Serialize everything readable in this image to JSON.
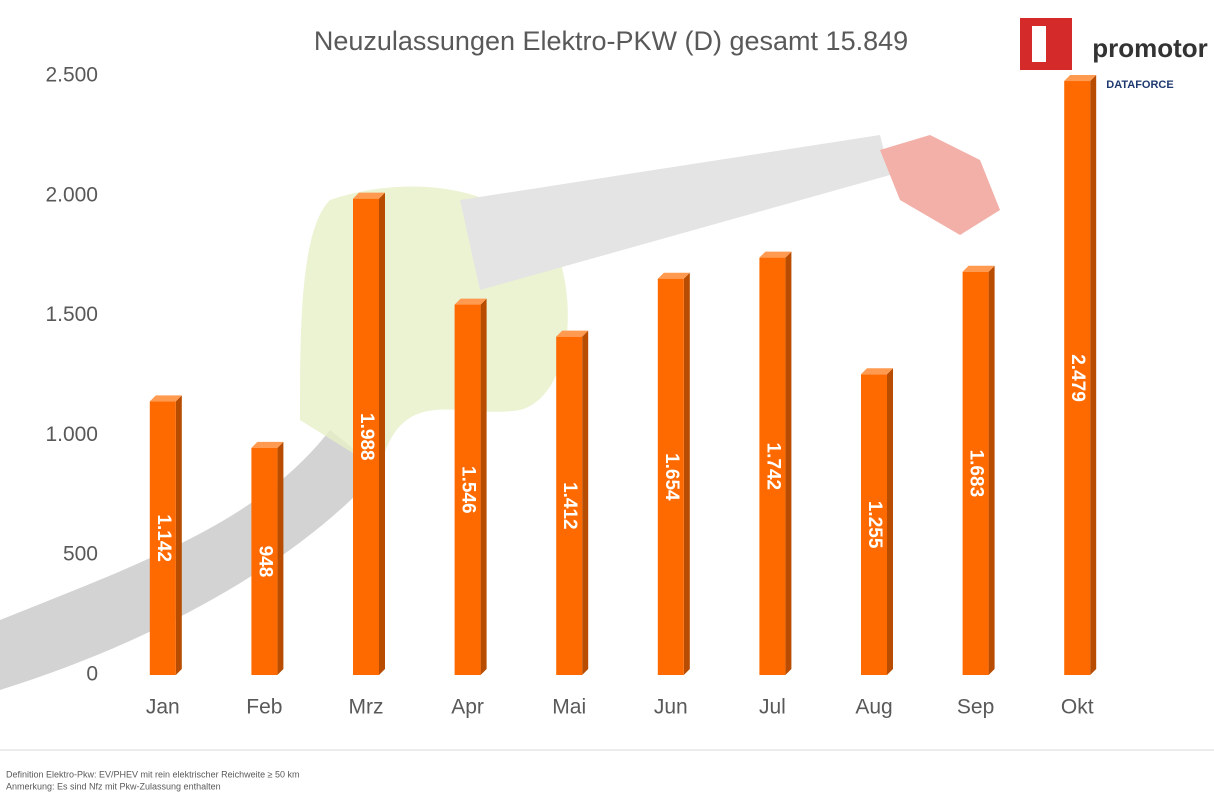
{
  "chart_data": {
    "type": "bar",
    "title": "Neuzulassungen Elektro-PKW (D) gesamt 15.849",
    "categories": [
      "Jan",
      "Feb",
      "Mrz",
      "Apr",
      "Mai",
      "Jun",
      "Jul",
      "Aug",
      "Sep",
      "Okt"
    ],
    "values": [
      1142,
      948,
      1988,
      1546,
      1412,
      1654,
      1742,
      1255,
      1683,
      2479
    ],
    "value_labels": [
      "1.142",
      "948",
      "1.988",
      "1.546",
      "1.412",
      "1.654",
      "1.742",
      "1.255",
      "1.683",
      "2.479"
    ],
    "color": "#ff6a00",
    "ylim": [
      0,
      2500
    ],
    "yticks": [
      0,
      500,
      {
        "value": 1000,
        "label": "1.000"
      },
      {
        "value": 1500,
        "label": "1.500"
      },
      {
        "value": 2000,
        "label": "2.000"
      },
      {
        "value": 2500,
        "label": "2.500"
      }
    ],
    "grid": false
  },
  "logo": {
    "name": "promotor",
    "sub": "DATAFORCE"
  },
  "footnotes": [
    "Definition Elektro-Pkw: EV/PHEV mit rein elektrischer Reichweite ≥ 50 km",
    "Anmerkung: Es sind Nfz mit Pkw-Zulassung enthalten"
  ]
}
